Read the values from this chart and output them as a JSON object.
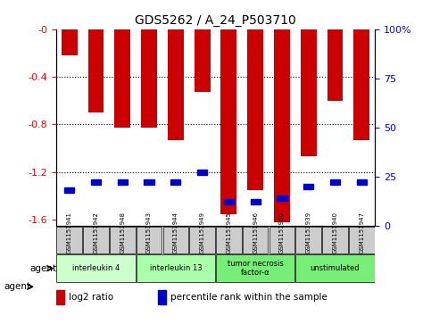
{
  "title": "GDS5262 / A_24_P503710",
  "samples": [
    "GSM1151941",
    "GSM1151942",
    "GSM1151948",
    "GSM1151943",
    "GSM1151944",
    "GSM1151949",
    "GSM1151945",
    "GSM1151946",
    "GSM1151950",
    "GSM1151939",
    "GSM1151940",
    "GSM1151947"
  ],
  "log2_ratio": [
    -0.22,
    -0.7,
    -0.83,
    -0.83,
    -0.93,
    -0.53,
    -1.55,
    -1.35,
    -1.62,
    -1.07,
    -0.6,
    -0.93
  ],
  "percentile_rank": [
    18,
    22,
    22,
    22,
    22,
    27,
    12,
    12,
    14,
    20,
    22,
    22
  ],
  "ylim_left": [
    -1.65,
    0.0
  ],
  "ylim_right": [
    0,
    100
  ],
  "yticks_left": [
    0.0,
    -0.4,
    -0.8,
    -1.2,
    -1.6
  ],
  "yticks_right": [
    100,
    75,
    50,
    25,
    0
  ],
  "right_tick_labels": [
    "100%",
    "75",
    "50",
    "25",
    "0"
  ],
  "gridlines": [
    -0.4,
    -0.8,
    -1.2
  ],
  "agents": [
    {
      "label": "interleukin 4",
      "cols": [
        0,
        1,
        2
      ],
      "color": "#ccffcc"
    },
    {
      "label": "interleukin 13",
      "cols": [
        3,
        4,
        5
      ],
      "color": "#aaffaa"
    },
    {
      "label": "tumor necrosis\nfactor-α",
      "cols": [
        6,
        7,
        8
      ],
      "color": "#77ee77"
    },
    {
      "label": "unstimulated",
      "cols": [
        9,
        10,
        11
      ],
      "color": "#77ee77"
    }
  ],
  "bar_color": "#cc0000",
  "blue_color": "#0000cc",
  "bg_color": "#ffffff",
  "sample_box_color": "#cccccc",
  "legend_items": [
    {
      "color": "#cc0000",
      "label": "log2 ratio"
    },
    {
      "color": "#0000cc",
      "label": "percentile rank within the sample"
    }
  ]
}
